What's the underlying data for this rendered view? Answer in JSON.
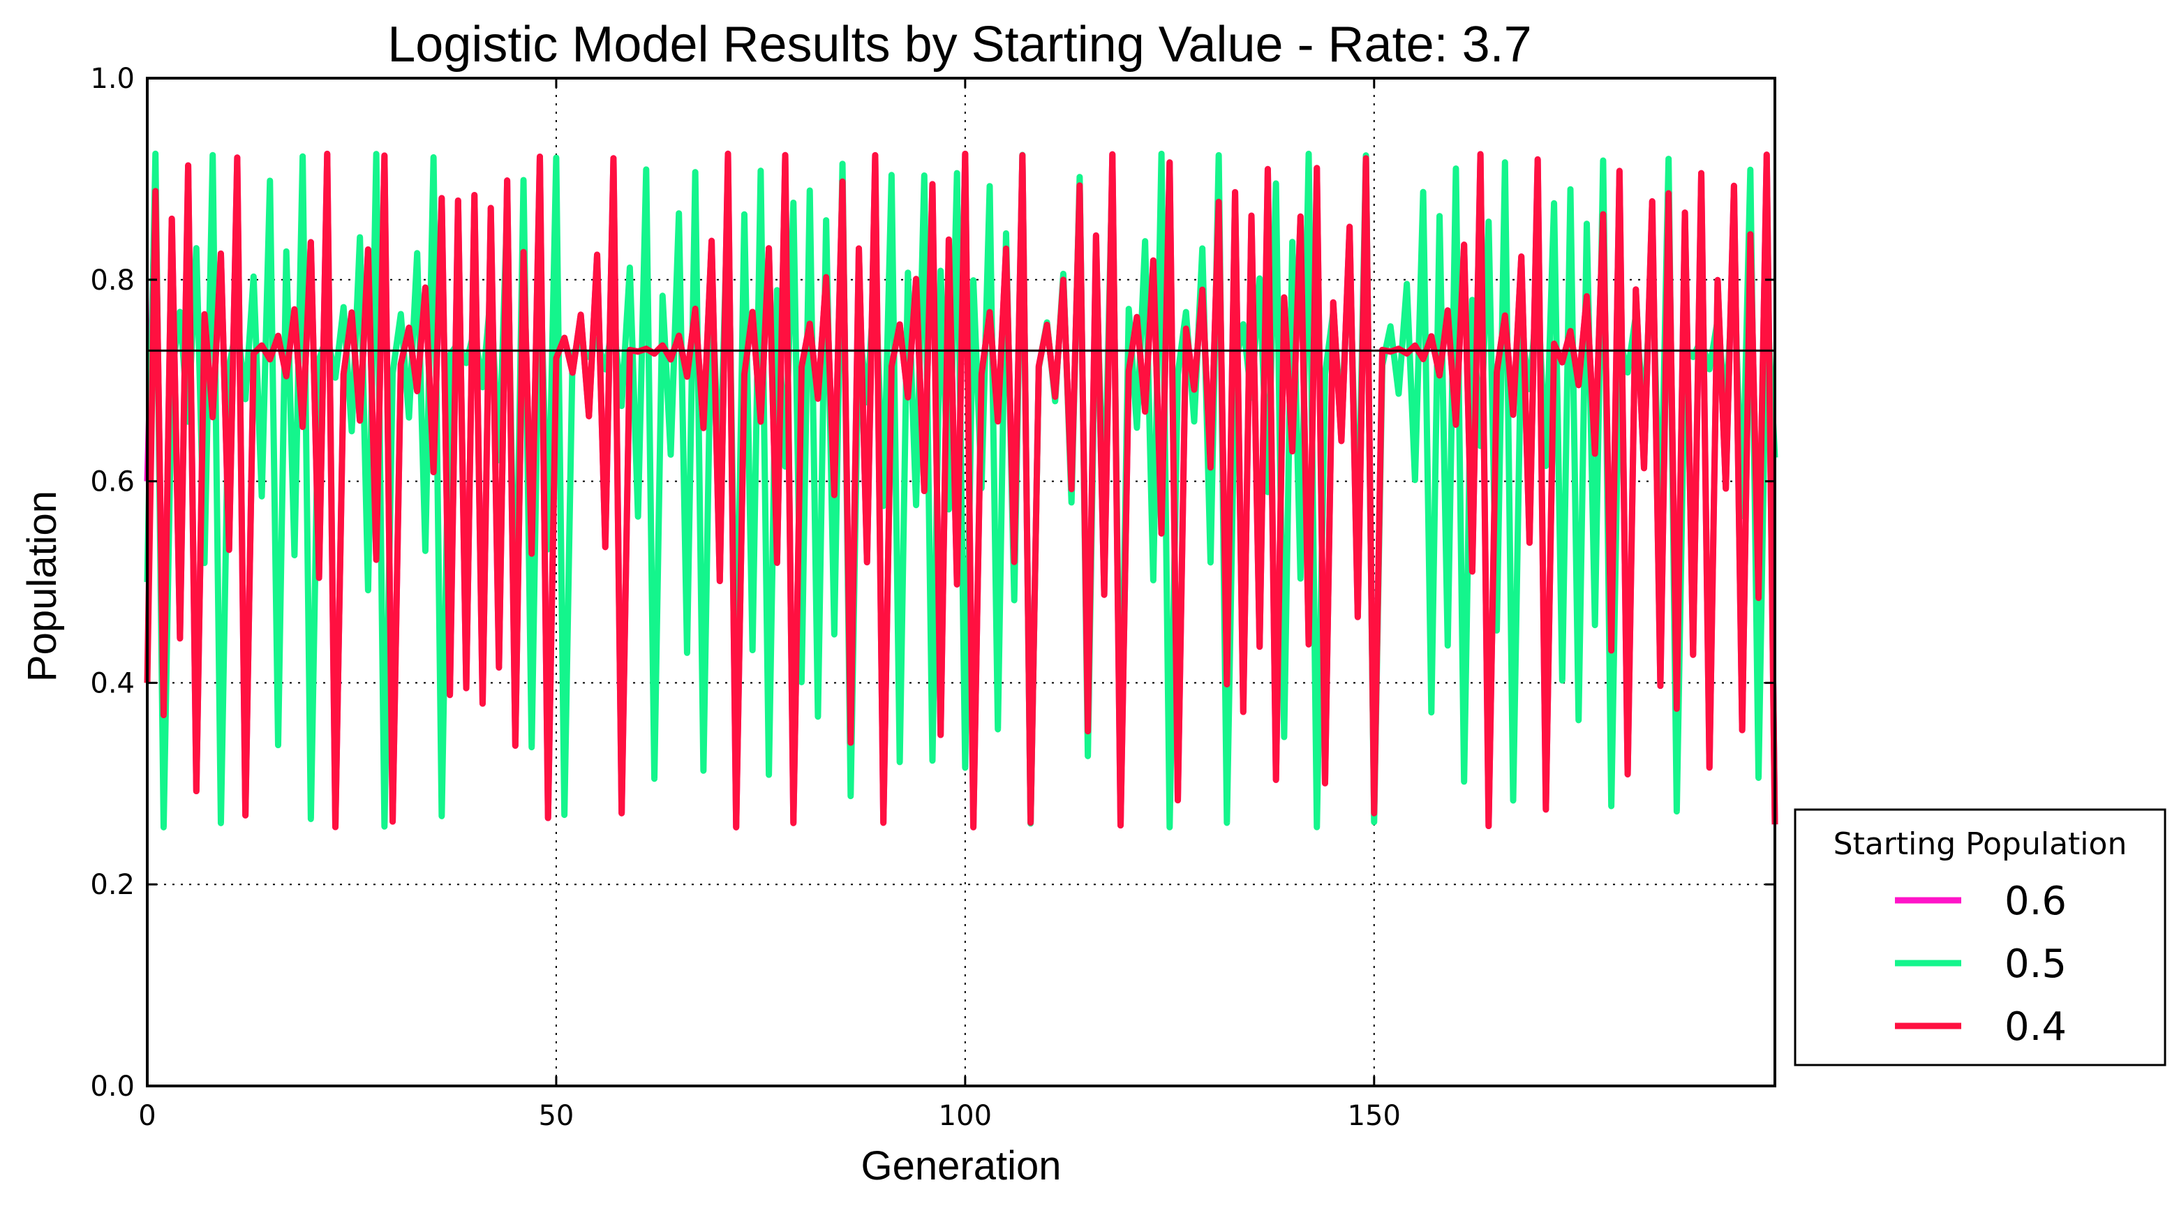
{
  "chart_data": {
    "type": "line",
    "title": "Logistic Model Results by Starting Value - Rate: 3.7",
    "xlabel": "Generation",
    "ylabel": "Population",
    "xlim": [
      0,
      199
    ],
    "ylim": [
      0.0,
      1.0
    ],
    "x_ticks": [
      "0",
      "50",
      "100",
      "150"
    ],
    "x_tick_values": [
      0,
      50,
      100,
      150
    ],
    "y_ticks": [
      "0.0",
      "0.2",
      "0.4",
      "0.6",
      "0.8",
      "1.0"
    ],
    "y_tick_values": [
      0.0,
      0.2,
      0.4,
      0.6,
      0.8,
      1.0
    ],
    "grid": true,
    "rate": 3.7,
    "generations": 200,
    "legend": {
      "title": "Starting Population",
      "placement": "outside-lower-right",
      "entries": [
        "0.6",
        "0.5",
        "0.4"
      ]
    },
    "series": [
      {
        "name": "0.6",
        "start": 0.6,
        "color": "#ff14c8",
        "values": []
      },
      {
        "name": "0.5",
        "start": 0.5,
        "color": "#14f58c",
        "values": []
      },
      {
        "name": "0.4",
        "start": 0.4,
        "color": "#ff1040",
        "values": []
      }
    ],
    "reference_line": {
      "y": 0.7297,
      "color": "#000000"
    }
  }
}
